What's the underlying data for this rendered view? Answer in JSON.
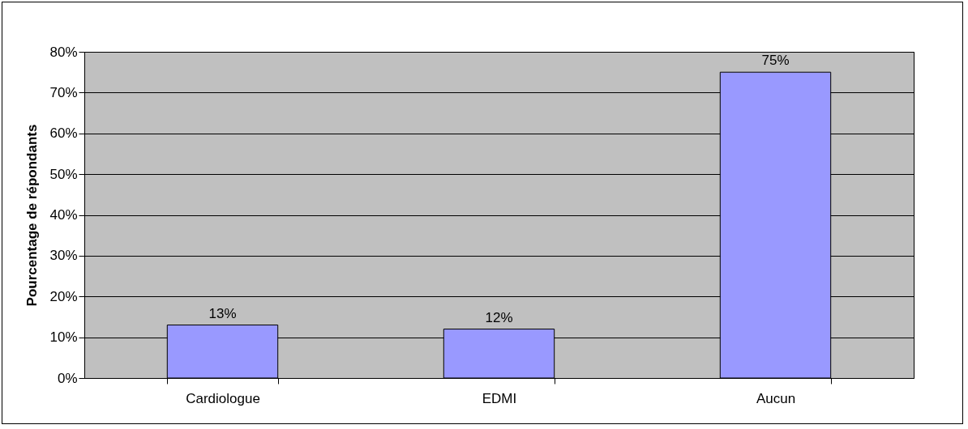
{
  "chart_data": {
    "type": "bar",
    "ylabel": "Pourcentage de répondants",
    "categories": [
      "Cardiologue",
      "EDMI",
      "Aucun"
    ],
    "values": [
      13,
      12,
      75
    ],
    "value_labels": [
      "13%",
      "12%",
      "75%"
    ],
    "color": "#9999ff",
    "ylim": [
      0,
      80
    ],
    "yticks": [
      {
        "value": 0,
        "label": "0%"
      },
      {
        "value": 10,
        "label": "10%"
      },
      {
        "value": 20,
        "label": "20%"
      },
      {
        "value": 30,
        "label": "30%"
      },
      {
        "value": 40,
        "label": "40%"
      },
      {
        "value": 50,
        "label": "50%"
      },
      {
        "value": 60,
        "label": "60%"
      },
      {
        "value": 70,
        "label": "70%"
      },
      {
        "value": 80,
        "label": "80%"
      }
    ],
    "grid": true
  }
}
